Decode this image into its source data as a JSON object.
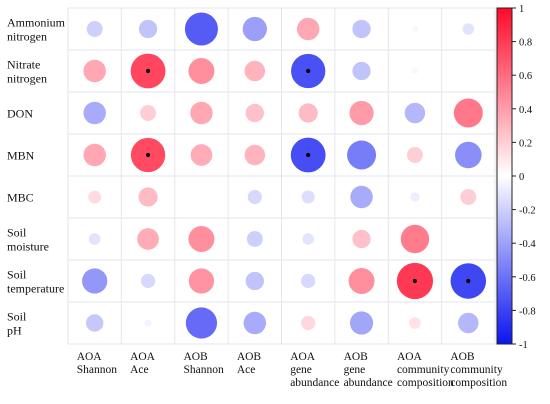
{
  "chart_data": {
    "type": "heatmap",
    "style": "correlation bubble matrix (size and color encode correlation)",
    "rows": [
      [
        "Ammonium",
        "nitrogen"
      ],
      [
        "Nitrate",
        "nitrogen"
      ],
      [
        "DON"
      ],
      [
        "MBN"
      ],
      [
        "MBC"
      ],
      [
        "Soil",
        "moisture"
      ],
      [
        "Soil",
        "temperature"
      ],
      [
        "Soil",
        "pH"
      ]
    ],
    "columns": [
      [
        "AOA",
        "Shannon"
      ],
      [
        "AOA",
        "Ace"
      ],
      [
        "AOB",
        "Shannon"
      ],
      [
        "AOB",
        "Ace"
      ],
      [
        "AOA",
        "gene",
        "abundance"
      ],
      [
        "AOB",
        "gene",
        "abundance"
      ],
      [
        "AOA",
        "community",
        "composition"
      ],
      [
        "AOB",
        "community",
        "composition"
      ]
    ],
    "values": [
      [
        -0.15,
        -0.2,
        -0.65,
        -0.35,
        0.3,
        -0.2,
        -0.02,
        -0.08
      ],
      [
        0.3,
        0.72,
        0.4,
        0.25,
        -0.7,
        -0.2,
        -0.02,
        0.0
      ],
      [
        -0.3,
        0.15,
        0.3,
        0.2,
        0.22,
        0.35,
        -0.25,
        0.5
      ],
      [
        0.3,
        0.7,
        0.28,
        0.25,
        -0.72,
        -0.5,
        0.15,
        -0.42
      ],
      [
        0.1,
        0.22,
        0.0,
        -0.12,
        -0.1,
        -0.3,
        -0.05,
        0.15
      ],
      [
        -0.08,
        0.28,
        0.4,
        -0.15,
        -0.08,
        0.2,
        0.48,
        0.0
      ],
      [
        -0.38,
        -0.12,
        0.38,
        -0.2,
        -0.12,
        0.4,
        0.78,
        -0.75
      ],
      [
        -0.18,
        -0.03,
        -0.58,
        -0.3,
        0.12,
        -0.32,
        0.08,
        -0.25
      ]
    ],
    "significant": [
      [
        1,
        1
      ],
      [
        1,
        4
      ],
      [
        3,
        1
      ],
      [
        3,
        4
      ],
      [
        6,
        6
      ],
      [
        6,
        7
      ]
    ],
    "colorbar": {
      "range": [
        -1,
        1
      ],
      "ticks": [
        "1",
        "0.8",
        "0.6",
        "0.4",
        "0.2",
        "0",
        "-0.2",
        "-0.4",
        "-0.6",
        "-0.8",
        "-1"
      ],
      "colors": {
        "high": "#ff0a2a",
        "mid": "#ffffff",
        "low": "#0a14f0"
      }
    }
  }
}
